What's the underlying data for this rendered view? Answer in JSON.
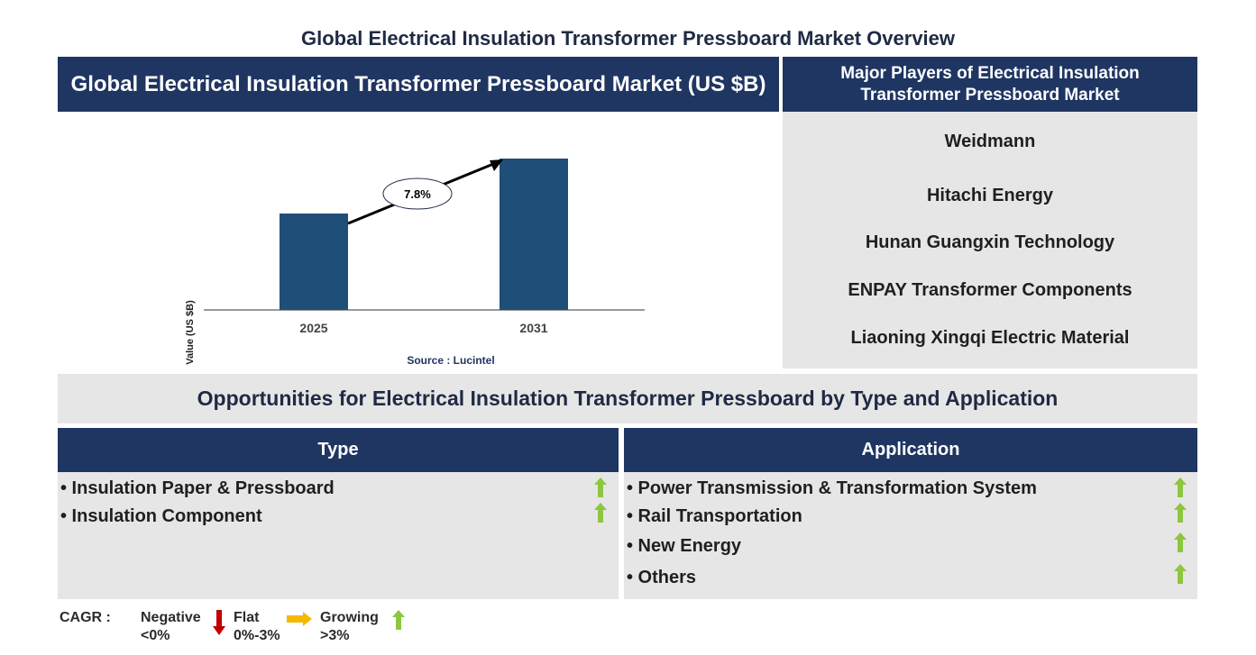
{
  "page_title": "Global Electrical Insulation Transformer Pressboard Market Overview",
  "chart_header": "Global Electrical Insulation Transformer Pressboard Market (US $B)",
  "players": {
    "header_line1": "Major Players of Electrical Insulation",
    "header_line2": "Transformer Pressboard Market",
    "items": [
      "Weidmann",
      "Hitachi Energy",
      "Hunan Guangxin Technology",
      "ENPAY Transformer Components",
      "Liaoning Xingqi Electric Material"
    ]
  },
  "chart_data": {
    "type": "bar",
    "categories": [
      "2025",
      "2031"
    ],
    "values": [
      1.0,
      1.57
    ],
    "ylabel": "Value (US $B)",
    "cagr_label": "7.8%",
    "source": "Source : Lucintel",
    "bar_color": "#1f4e79"
  },
  "opportunities_title": "Opportunities for Electrical Insulation Transformer Pressboard by Type and Application",
  "type_section": {
    "header": "Type",
    "items": [
      "• Insulation Paper & Pressboard",
      "• Insulation Component"
    ]
  },
  "application_section": {
    "header": "Application",
    "items": [
      "• Power Transmission & Transformation System",
      "• Rail Transportation",
      "• New Energy",
      "• Others"
    ]
  },
  "legend": {
    "cagr": "CAGR  :",
    "negative": "Negative",
    "negative_range": "<0%",
    "flat": "Flat",
    "flat_range": "0%-3%",
    "growing": "Growing",
    "growing_range": ">3%"
  },
  "colors": {
    "navy": "#1f3562",
    "panel_gray": "#e6e6e6",
    "growing_arrow": "#8dc63f",
    "flat_arrow": "#f5b800",
    "negative_arrow": "#c00000"
  },
  "icons": {
    "growing": "up-arrow-icon",
    "flat": "right-arrow-icon",
    "negative": "down-arrow-icon"
  }
}
